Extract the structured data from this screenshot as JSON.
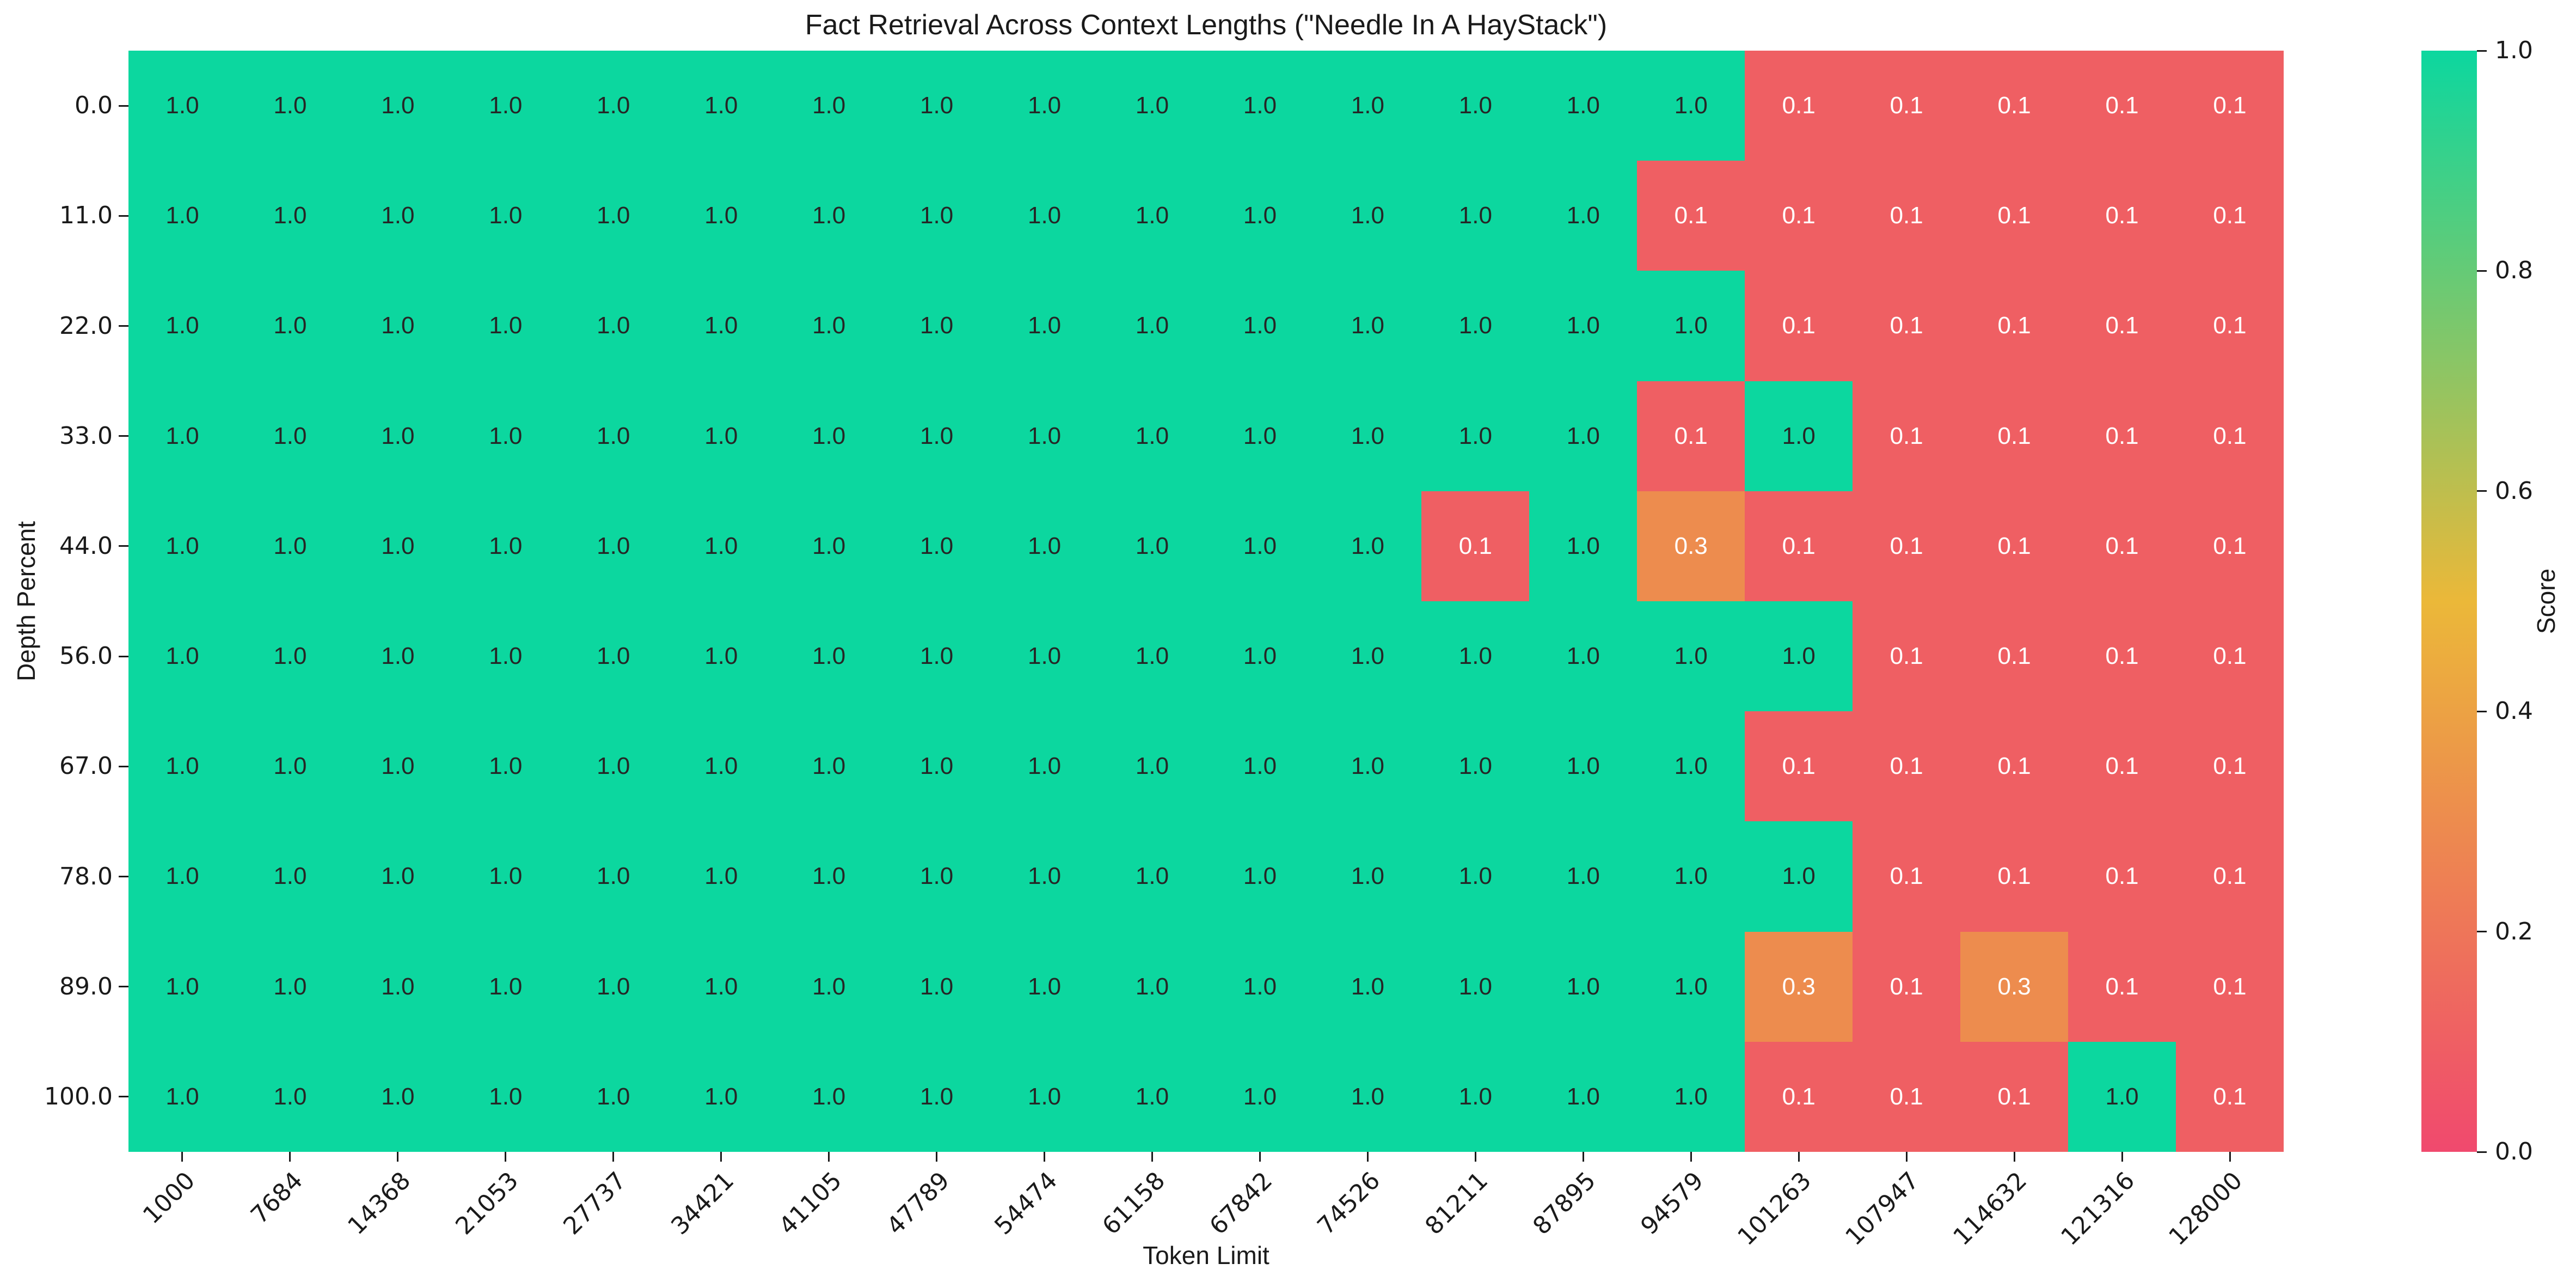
{
  "chart_data": {
    "type": "heatmap",
    "title": "Fact Retrieval Across Context Lengths (\"Needle In A HayStack\")",
    "xlabel": "Token Limit",
    "ylabel": "Depth Percent",
    "x_tick_labels": [
      "1000",
      "7684",
      "14368",
      "21053",
      "27737",
      "34421",
      "41105",
      "47789",
      "54474",
      "61158",
      "67842",
      "74526",
      "81211",
      "87895",
      "94579",
      "101263",
      "107947",
      "114632",
      "121316",
      "128000"
    ],
    "y_tick_labels": [
      "0.0",
      "11.0",
      "22.0",
      "33.0",
      "44.0",
      "56.0",
      "67.0",
      "78.0",
      "89.0",
      "100.0"
    ],
    "values": [
      [
        1.0,
        1.0,
        1.0,
        1.0,
        1.0,
        1.0,
        1.0,
        1.0,
        1.0,
        1.0,
        1.0,
        1.0,
        1.0,
        1.0,
        1.0,
        0.1,
        0.1,
        0.1,
        0.1,
        0.1
      ],
      [
        1.0,
        1.0,
        1.0,
        1.0,
        1.0,
        1.0,
        1.0,
        1.0,
        1.0,
        1.0,
        1.0,
        1.0,
        1.0,
        1.0,
        0.1,
        0.1,
        0.1,
        0.1,
        0.1,
        0.1
      ],
      [
        1.0,
        1.0,
        1.0,
        1.0,
        1.0,
        1.0,
        1.0,
        1.0,
        1.0,
        1.0,
        1.0,
        1.0,
        1.0,
        1.0,
        1.0,
        0.1,
        0.1,
        0.1,
        0.1,
        0.1
      ],
      [
        1.0,
        1.0,
        1.0,
        1.0,
        1.0,
        1.0,
        1.0,
        1.0,
        1.0,
        1.0,
        1.0,
        1.0,
        1.0,
        1.0,
        0.1,
        1.0,
        0.1,
        0.1,
        0.1,
        0.1
      ],
      [
        1.0,
        1.0,
        1.0,
        1.0,
        1.0,
        1.0,
        1.0,
        1.0,
        1.0,
        1.0,
        1.0,
        1.0,
        0.1,
        1.0,
        0.3,
        0.1,
        0.1,
        0.1,
        0.1,
        0.1
      ],
      [
        1.0,
        1.0,
        1.0,
        1.0,
        1.0,
        1.0,
        1.0,
        1.0,
        1.0,
        1.0,
        1.0,
        1.0,
        1.0,
        1.0,
        1.0,
        1.0,
        0.1,
        0.1,
        0.1,
        0.1
      ],
      [
        1.0,
        1.0,
        1.0,
        1.0,
        1.0,
        1.0,
        1.0,
        1.0,
        1.0,
        1.0,
        1.0,
        1.0,
        1.0,
        1.0,
        1.0,
        0.1,
        0.1,
        0.1,
        0.1,
        0.1
      ],
      [
        1.0,
        1.0,
        1.0,
        1.0,
        1.0,
        1.0,
        1.0,
        1.0,
        1.0,
        1.0,
        1.0,
        1.0,
        1.0,
        1.0,
        1.0,
        1.0,
        0.1,
        0.1,
        0.1,
        0.1
      ],
      [
        1.0,
        1.0,
        1.0,
        1.0,
        1.0,
        1.0,
        1.0,
        1.0,
        1.0,
        1.0,
        1.0,
        1.0,
        1.0,
        1.0,
        1.0,
        0.3,
        0.1,
        0.3,
        0.1,
        0.1
      ],
      [
        1.0,
        1.0,
        1.0,
        1.0,
        1.0,
        1.0,
        1.0,
        1.0,
        1.0,
        1.0,
        1.0,
        1.0,
        1.0,
        1.0,
        1.0,
        0.1,
        0.1,
        0.1,
        1.0,
        0.1
      ]
    ],
    "annotation_decimals": 1,
    "value_range": [
      0.0,
      1.0
    ],
    "grid": false,
    "colorbar": {
      "label": "Score",
      "tick_labels": [
        "1.0",
        "0.8",
        "0.6",
        "0.4",
        "0.2",
        "0.0"
      ],
      "position": "right",
      "color_stops": [
        "#F0496E",
        "#EBB839",
        "#0CD79F"
      ]
    },
    "annotation_colors": {
      "dark": "#262626",
      "light": "#ffffff"
    }
  }
}
